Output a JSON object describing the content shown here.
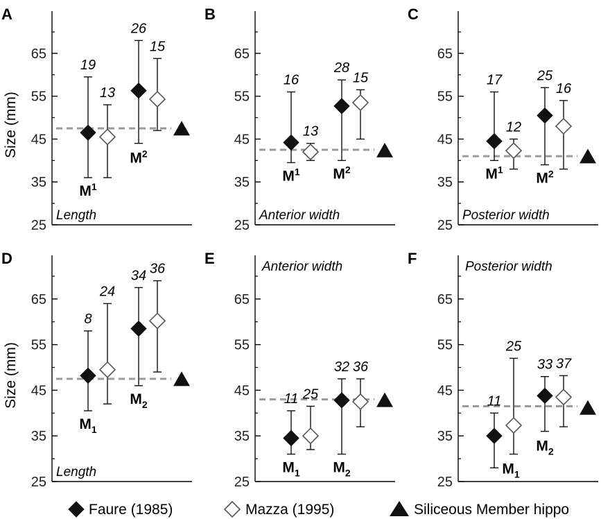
{
  "legend": {
    "faure": "Faure (1985)",
    "mazza": "Mazza (1995)",
    "siliceous": "Siliceous Member hippo"
  },
  "chart_data": [
    {
      "type": "scatter",
      "panel": "A",
      "measure": "Length",
      "ylabel": "Size (mm)",
      "ylim": [
        25,
        70
      ],
      "yticks": [
        "65",
        "55",
        "45",
        "35",
        "25"
      ],
      "reference_line": 47.5,
      "siliceous_value": 47.3,
      "teeth": [
        {
          "tooth": "M",
          "index": "1",
          "position": "sup",
          "faure": {
            "mean": 46.5,
            "min": 36,
            "max": 59.5,
            "n": "19"
          },
          "mazza": {
            "mean": 45.5,
            "min": 36,
            "max": 53,
            "n": "13"
          }
        },
        {
          "tooth": "M",
          "index": "2",
          "position": "sup",
          "faure": {
            "mean": 56.3,
            "min": 44,
            "max": 68,
            "n": "26"
          },
          "mazza": {
            "mean": 54.3,
            "min": 47,
            "max": 63.8,
            "n": "15"
          }
        }
      ]
    },
    {
      "type": "scatter",
      "panel": "B",
      "measure": "Anterior width",
      "ylabel": "",
      "ylim": [
        25,
        70
      ],
      "yticks": [
        "65",
        "55",
        "45",
        "35",
        "25"
      ],
      "reference_line": 42.5,
      "siliceous_value": 42.2,
      "teeth": [
        {
          "tooth": "M",
          "index": "1",
          "position": "sup",
          "faure": {
            "mean": 44.2,
            "min": 39.5,
            "max": 56,
            "n": "16"
          },
          "mazza": {
            "mean": 42,
            "min": 40,
            "max": 44,
            "n": "13"
          }
        },
        {
          "tooth": "M",
          "index": "2",
          "position": "sup",
          "faure": {
            "mean": 52.7,
            "min": 40,
            "max": 58.8,
            "n": "28"
          },
          "mazza": {
            "mean": 53.5,
            "min": 45,
            "max": 56.5,
            "n": "15"
          }
        }
      ]
    },
    {
      "type": "scatter",
      "panel": "C",
      "measure": "Posterior width",
      "ylabel": "",
      "ylim": [
        25,
        70
      ],
      "yticks": [
        "65",
        "55",
        "45",
        "35",
        "25"
      ],
      "reference_line": 41,
      "siliceous_value": 40.8,
      "teeth": [
        {
          "tooth": "M",
          "index": "1",
          "position": "sup",
          "faure": {
            "mean": 44.5,
            "min": 40,
            "max": 56,
            "n": "17"
          },
          "mazza": {
            "mean": 42.3,
            "min": 38,
            "max": 45,
            "n": "12"
          }
        },
        {
          "tooth": "M",
          "index": "2",
          "position": "sup",
          "faure": {
            "mean": 50.5,
            "min": 39,
            "max": 57,
            "n": "25"
          },
          "mazza": {
            "mean": 48,
            "min": 38,
            "max": 54,
            "n": "16"
          }
        }
      ]
    },
    {
      "type": "scatter",
      "panel": "D",
      "measure": "Length",
      "ylabel": "Size (mm)",
      "ylim": [
        25,
        70
      ],
      "yticks": [
        "65",
        "55",
        "45",
        "35",
        "25"
      ],
      "reference_line": 47.5,
      "siliceous_value": 47.3,
      "teeth": [
        {
          "tooth": "M",
          "index": "1",
          "position": "sub",
          "faure": {
            "mean": 48.2,
            "min": 40.5,
            "max": 58,
            "n": "8"
          },
          "mazza": {
            "mean": 49.5,
            "min": 42,
            "max": 64,
            "n": "24"
          }
        },
        {
          "tooth": "M",
          "index": "2",
          "position": "sub",
          "faure": {
            "mean": 58.5,
            "min": 46,
            "max": 67.5,
            "n": "34"
          },
          "mazza": {
            "mean": 60.2,
            "min": 49,
            "max": 69,
            "n": "36"
          }
        }
      ]
    },
    {
      "type": "scatter",
      "panel": "E",
      "measure": "Anterior width",
      "ylabel": "",
      "ylim": [
        25,
        70
      ],
      "yticks": [
        "65",
        "55",
        "45",
        "35",
        "25"
      ],
      "reference_line": 43,
      "siliceous_value": 42.7,
      "teeth": [
        {
          "tooth": "M",
          "index": "1",
          "position": "sub",
          "faure": {
            "mean": 34.5,
            "min": 31,
            "max": 40.5,
            "n": "11"
          },
          "mazza": {
            "mean": 35,
            "min": 32,
            "max": 41.5,
            "n": "25"
          }
        },
        {
          "tooth": "M",
          "index": "2",
          "position": "sub",
          "faure": {
            "mean": 42.8,
            "min": 31,
            "max": 47.5,
            "n": "32"
          },
          "mazza": {
            "mean": 42.5,
            "min": 37,
            "max": 47.5,
            "n": "36"
          }
        }
      ]
    },
    {
      "type": "scatter",
      "panel": "F",
      "measure": "Posterior width",
      "ylabel": "",
      "ylim": [
        25,
        70
      ],
      "yticks": [
        "65",
        "55",
        "45",
        "35",
        "25"
      ],
      "reference_line": 41.5,
      "siliceous_value": 41,
      "teeth": [
        {
          "tooth": "M",
          "index": "1",
          "position": "sub",
          "faure": {
            "mean": 35,
            "min": 28,
            "max": 40,
            "n": "11"
          },
          "mazza": {
            "mean": 37.3,
            "min": 31,
            "max": 52,
            "n": "25"
          }
        },
        {
          "tooth": "M",
          "index": "2",
          "position": "sub",
          "faure": {
            "mean": 43.8,
            "min": 36,
            "max": 48,
            "n": "33"
          },
          "mazza": {
            "mean": 43.5,
            "min": 37,
            "max": 48.2,
            "n": "37"
          }
        }
      ]
    }
  ]
}
